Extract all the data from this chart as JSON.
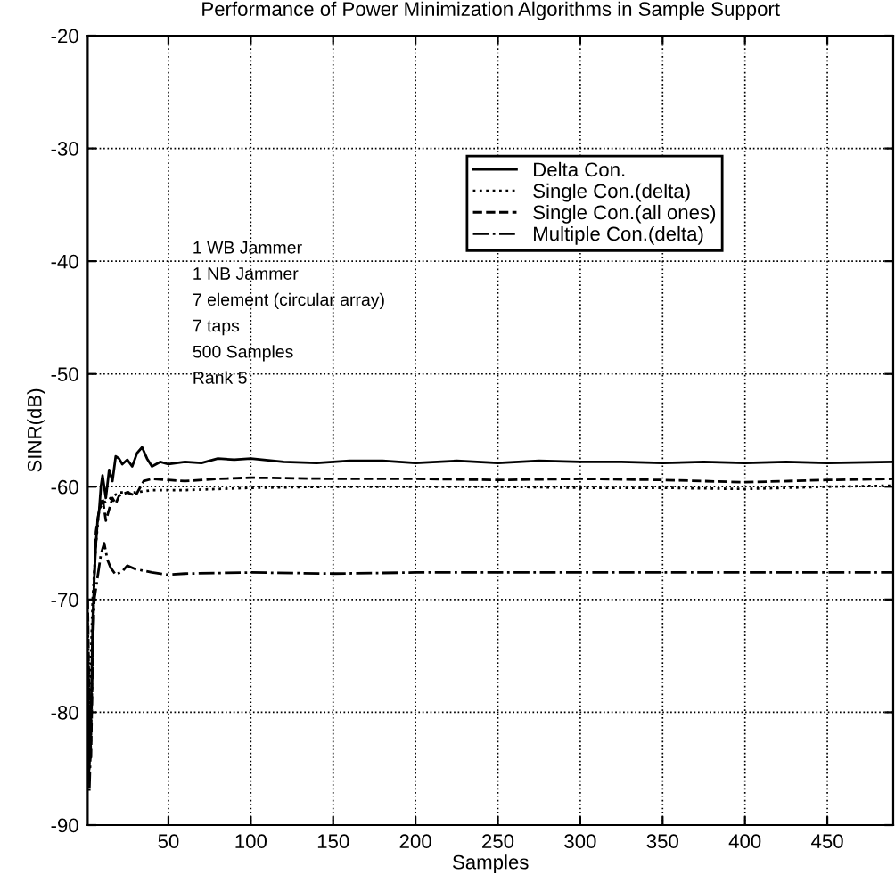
{
  "chart_data": {
    "type": "line",
    "title": "Performance of Power Minimization Algorithms in Sample Support",
    "xlabel": "Samples",
    "ylabel": "SINR(dB)",
    "annotations": [
      "1 WB Jammer",
      "1 NB Jammer",
      "7 element (circular array)",
      "7 taps",
      "500 Samples",
      "Rank 5"
    ],
    "xlim": [
      1,
      490
    ],
    "ylim": [
      -90,
      -20
    ],
    "xticks": [
      50,
      100,
      150,
      200,
      250,
      300,
      350,
      400,
      450
    ],
    "yticks": [
      -90,
      -80,
      -70,
      -60,
      -50,
      -40,
      -30,
      -20
    ],
    "grid": true,
    "legend": "top right",
    "marker": "none",
    "series": [
      {
        "name": "Delta Con.",
        "color": "#000000",
        "line_style": "solid",
        "x": [
          1,
          2,
          3,
          4,
          5,
          6,
          7,
          8,
          9,
          10,
          12,
          14,
          16,
          18,
          20,
          22,
          25,
          28,
          31,
          34,
          37,
          40,
          45,
          50,
          60,
          70,
          80,
          90,
          100,
          120,
          140,
          160,
          180,
          200,
          225,
          250,
          275,
          300,
          325,
          350,
          375,
          400,
          425,
          450,
          490
        ],
        "values": [
          -75,
          -85,
          -80,
          -72,
          -68,
          -65,
          -63,
          -62,
          -60,
          -59,
          -61,
          -58.5,
          -59.5,
          -57.3,
          -57.5,
          -58,
          -57.6,
          -58.2,
          -57,
          -56.5,
          -57.5,
          -58.2,
          -57.8,
          -58,
          -57.8,
          -57.9,
          -57.5,
          -57.6,
          -57.5,
          -57.8,
          -57.9,
          -57.7,
          -57.7,
          -57.9,
          -57.7,
          -57.9,
          -57.7,
          -57.8,
          -57.8,
          -57.9,
          -57.8,
          -57.9,
          -57.8,
          -57.9,
          -57.8
        ]
      },
      {
        "name": "Single Con.(delta)",
        "color": "#000000",
        "line_style": "dotted",
        "x": [
          1,
          2,
          4,
          6,
          8,
          10,
          15,
          20,
          30,
          40,
          60,
          100,
          150,
          200,
          250,
          300,
          350,
          400,
          450,
          490
        ],
        "values": [
          -72,
          -80,
          -70,
          -65,
          -62,
          -61.5,
          -61,
          -60.5,
          -60.5,
          -60.3,
          -60.3,
          -60.1,
          -60,
          -60,
          -60,
          -60.1,
          -60.1,
          -60.2,
          -60,
          -59.9
        ]
      },
      {
        "name": "Single Con.(all ones)",
        "color": "#000000",
        "line_style": "dashed",
        "x": [
          1,
          2,
          3,
          4,
          5,
          6,
          8,
          10,
          12,
          14,
          16,
          18,
          20,
          25,
          30,
          35,
          40,
          50,
          60,
          80,
          100,
          150,
          200,
          250,
          300,
          350,
          400,
          450,
          490
        ],
        "values": [
          -70,
          -80,
          -84,
          -75,
          -68,
          -64,
          -62,
          -61,
          -63,
          -62,
          -61,
          -61.5,
          -60.8,
          -60.5,
          -60.8,
          -59.5,
          -59.3,
          -59.4,
          -59.5,
          -59.3,
          -59.2,
          -59.3,
          -59.3,
          -59.4,
          -59.3,
          -59.4,
          -59.6,
          -59.4,
          -59.3
        ]
      },
      {
        "name": "Multiple Con.(delta)",
        "color": "#000000",
        "line_style": "dashdot",
        "x": [
          1,
          2,
          3,
          4,
          5,
          7,
          9,
          11,
          13,
          15,
          18,
          22,
          25,
          30,
          40,
          50,
          60,
          100,
          150,
          200,
          300,
          400,
          490
        ],
        "values": [
          -78,
          -87,
          -82,
          -75,
          -70,
          -68,
          -66,
          -65,
          -66.5,
          -67.2,
          -67.8,
          -67.5,
          -67,
          -67.3,
          -67.6,
          -67.8,
          -67.7,
          -67.6,
          -67.7,
          -67.6,
          -67.6,
          -67.6,
          -67.6
        ]
      }
    ]
  }
}
